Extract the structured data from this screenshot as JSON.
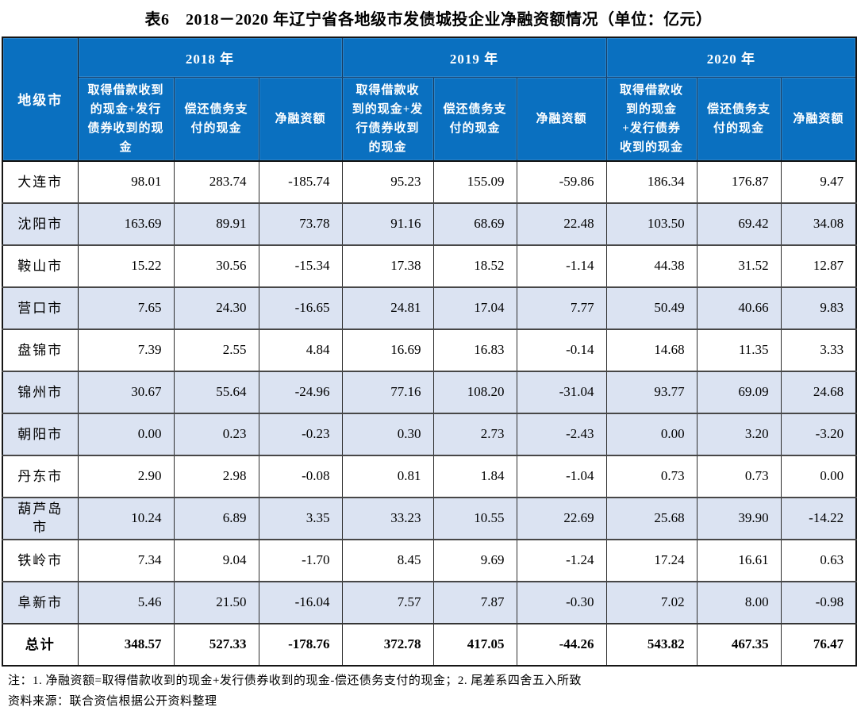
{
  "page": {
    "title": "表6　2018－2020 年辽宁省各地级市发债城投企业净融资额情况（单位：亿元）"
  },
  "colors": {
    "header_bg": "#0a70c0",
    "header_text": "#ffffff",
    "shaded_row_bg": "#dbe3f2",
    "outer_border": "#151515",
    "row_divider": "#474747"
  },
  "table": {
    "corner_header": "地级市",
    "year_groups": [
      {
        "label": "2018 年",
        "columns": [
          "取得借款收到的现金+发行债券收到的现金",
          "偿还债务支付的现金",
          "净融资额"
        ]
      },
      {
        "label": "2019 年",
        "columns": [
          "取得借款收到的现金+发行债券收到的现金",
          "偿还债务支付的现金",
          "净融资额"
        ]
      },
      {
        "label": "2020 年",
        "columns": [
          "取得借款收到的现金+发行债券收到的现金",
          "偿还债务支付的现金",
          "净融资额"
        ]
      }
    ],
    "rows": [
      {
        "city": "大连市",
        "shaded": false,
        "total": false,
        "values": [
          "98.01",
          "283.74",
          "-185.74",
          "95.23",
          "155.09",
          "-59.86",
          "186.34",
          "176.87",
          "9.47"
        ]
      },
      {
        "city": "沈阳市",
        "shaded": true,
        "total": false,
        "values": [
          "163.69",
          "89.91",
          "73.78",
          "91.16",
          "68.69",
          "22.48",
          "103.50",
          "69.42",
          "34.08"
        ]
      },
      {
        "city": "鞍山市",
        "shaded": false,
        "total": false,
        "values": [
          "15.22",
          "30.56",
          "-15.34",
          "17.38",
          "18.52",
          "-1.14",
          "44.38",
          "31.52",
          "12.87"
        ]
      },
      {
        "city": "营口市",
        "shaded": true,
        "total": false,
        "values": [
          "7.65",
          "24.30",
          "-16.65",
          "24.81",
          "17.04",
          "7.77",
          "50.49",
          "40.66",
          "9.83"
        ]
      },
      {
        "city": "盘锦市",
        "shaded": false,
        "total": false,
        "values": [
          "7.39",
          "2.55",
          "4.84",
          "16.69",
          "16.83",
          "-0.14",
          "14.68",
          "11.35",
          "3.33"
        ]
      },
      {
        "city": "锦州市",
        "shaded": true,
        "total": false,
        "values": [
          "30.67",
          "55.64",
          "-24.96",
          "77.16",
          "108.20",
          "-31.04",
          "93.77",
          "69.09",
          "24.68"
        ]
      },
      {
        "city": "朝阳市",
        "shaded": true,
        "total": false,
        "values": [
          "0.00",
          "0.23",
          "-0.23",
          "0.30",
          "2.73",
          "-2.43",
          "0.00",
          "3.20",
          "-3.20"
        ]
      },
      {
        "city": "丹东市",
        "shaded": false,
        "total": false,
        "values": [
          "2.90",
          "2.98",
          "-0.08",
          "0.81",
          "1.84",
          "-1.04",
          "0.73",
          "0.73",
          "0.00"
        ]
      },
      {
        "city": "葫芦岛市",
        "shaded": true,
        "total": false,
        "values": [
          "10.24",
          "6.89",
          "3.35",
          "33.23",
          "10.55",
          "22.69",
          "25.68",
          "39.90",
          "-14.22"
        ]
      },
      {
        "city": "铁岭市",
        "shaded": false,
        "total": false,
        "values": [
          "7.34",
          "9.04",
          "-1.70",
          "8.45",
          "9.69",
          "-1.24",
          "17.24",
          "16.61",
          "0.63"
        ]
      },
      {
        "city": "阜新市",
        "shaded": true,
        "total": false,
        "values": [
          "5.46",
          "21.50",
          "-16.04",
          "7.57",
          "7.87",
          "-0.30",
          "7.02",
          "8.00",
          "-0.98"
        ]
      },
      {
        "city": "总计",
        "shaded": false,
        "total": true,
        "values": [
          "348.57",
          "527.33",
          "-178.76",
          "372.78",
          "417.05",
          "-44.26",
          "543.82",
          "467.35",
          "76.47"
        ]
      }
    ]
  },
  "notes": {
    "note1": "注：1. 净融资额=取得借款收到的现金+发行债券收到的现金-偿还债务支付的现金；2. 尾差系四舍五入所致",
    "source": "资料来源：联合资信根据公开资料整理"
  },
  "chart_data": {
    "type": "table",
    "title": "表6 2018－2020年辽宁省各地级市发债城投企业净融资额情况（单位：亿元）",
    "categories": [
      "大连市",
      "沈阳市",
      "鞍山市",
      "营口市",
      "盘锦市",
      "锦州市",
      "朝阳市",
      "丹东市",
      "葫芦岛市",
      "铁岭市",
      "阜新市",
      "总计"
    ],
    "series": [
      {
        "name": "2018年 取得借款收到的现金+发行债券收到的现金",
        "values": [
          98.01,
          163.69,
          15.22,
          7.65,
          7.39,
          30.67,
          0.0,
          2.9,
          10.24,
          7.34,
          5.46,
          348.57
        ]
      },
      {
        "name": "2018年 偿还债务支付的现金",
        "values": [
          283.74,
          89.91,
          30.56,
          24.3,
          2.55,
          55.64,
          0.23,
          2.98,
          6.89,
          9.04,
          21.5,
          527.33
        ]
      },
      {
        "name": "2018年 净融资额",
        "values": [
          -185.74,
          73.78,
          -15.34,
          -16.65,
          4.84,
          -24.96,
          -0.23,
          -0.08,
          3.35,
          -1.7,
          -16.04,
          -178.76
        ]
      },
      {
        "name": "2019年 取得借款收到的现金+发行债券收到的现金",
        "values": [
          95.23,
          91.16,
          17.38,
          24.81,
          16.69,
          77.16,
          0.3,
          0.81,
          33.23,
          8.45,
          7.57,
          372.78
        ]
      },
      {
        "name": "2019年 偿还债务支付的现金",
        "values": [
          155.09,
          68.69,
          18.52,
          17.04,
          16.83,
          108.2,
          2.73,
          1.84,
          10.55,
          9.69,
          7.87,
          417.05
        ]
      },
      {
        "name": "2019年 净融资额",
        "values": [
          -59.86,
          22.48,
          -1.14,
          7.77,
          -0.14,
          -31.04,
          -2.43,
          -1.04,
          22.69,
          -1.24,
          -0.3,
          -44.26
        ]
      },
      {
        "name": "2020年 取得借款收到的现金+发行债券收到的现金",
        "values": [
          186.34,
          103.5,
          44.38,
          50.49,
          14.68,
          93.77,
          0.0,
          0.73,
          25.68,
          17.24,
          7.02,
          543.82
        ]
      },
      {
        "name": "2020年 偿还债务支付的现金",
        "values": [
          176.87,
          69.42,
          31.52,
          40.66,
          11.35,
          69.09,
          3.2,
          0.73,
          39.9,
          16.61,
          8.0,
          467.35
        ]
      },
      {
        "name": "2020年 净融资额",
        "values": [
          9.47,
          34.08,
          12.87,
          9.83,
          3.33,
          24.68,
          -3.2,
          0.0,
          -14.22,
          0.63,
          -0.98,
          76.47
        ]
      }
    ]
  }
}
